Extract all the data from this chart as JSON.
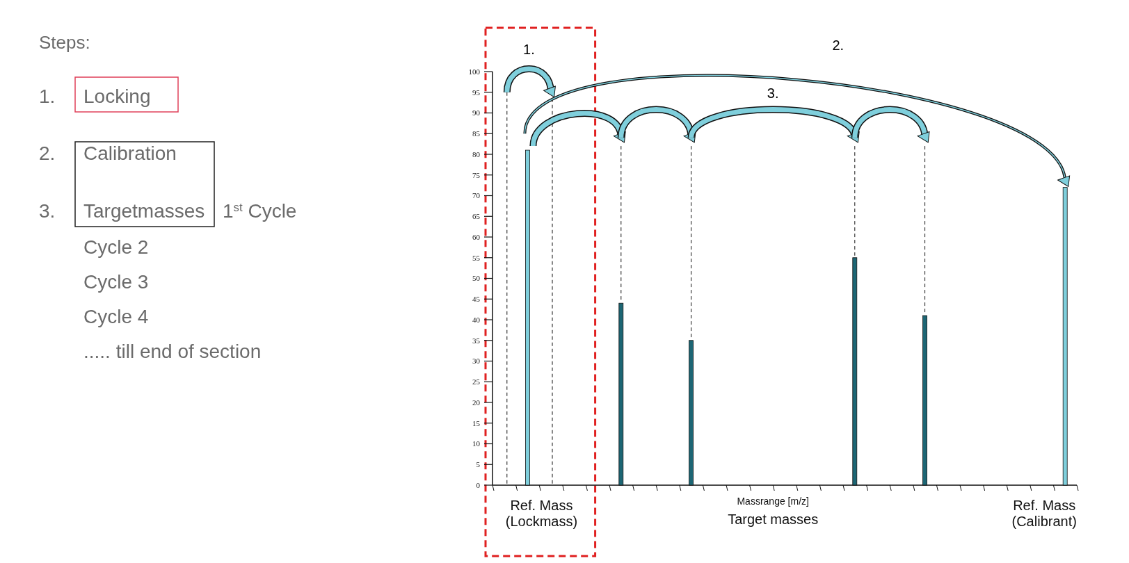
{
  "chart_data": {
    "type": "bar",
    "xlabel": "Massrange [m/z]",
    "categories": [
      null,
      null,
      null,
      null,
      null,
      null,
      null,
      null,
      null,
      null,
      null,
      null,
      null,
      null,
      null,
      null,
      null,
      null,
      null,
      null,
      null,
      null,
      null,
      null,
      null
    ],
    "series": [
      {
        "color": "#7fcfdc",
        "values": [
          null,
          81,
          null,
          null,
          null,
          null,
          null,
          null,
          null,
          null,
          null,
          null,
          null,
          null,
          null,
          null,
          null,
          null,
          null,
          null,
          null,
          null,
          null,
          null,
          72
        ]
      },
      {
        "color": "#1d6674",
        "values": [
          null,
          null,
          null,
          null,
          null,
          44,
          null,
          null,
          35,
          null,
          null,
          null,
          null,
          null,
          null,
          55,
          null,
          null,
          41,
          null,
          null,
          null,
          null,
          null,
          null
        ]
      }
    ],
    "ylim": [
      0,
      100
    ],
    "yticks": [
      0,
      5,
      10,
      15,
      20,
      25,
      30,
      35,
      40,
      45,
      50,
      55,
      60,
      65,
      70,
      75,
      80,
      85,
      90,
      95,
      100
    ],
    "annotations": [
      "Steps:",
      "1.",
      "Locking",
      "2.",
      "Calibration",
      "3.",
      "Targetmasses",
      "1$^{st}$ Cycle",
      "Cycle 2",
      "Cycle 3",
      "Cycle 4",
      "..... till end of section",
      "1.",
      "2.",
      "3.",
      "Ref. Mass (Lockmass)",
      "Target masses",
      "Ref. Mass (Calibrant)"
    ]
  }
}
